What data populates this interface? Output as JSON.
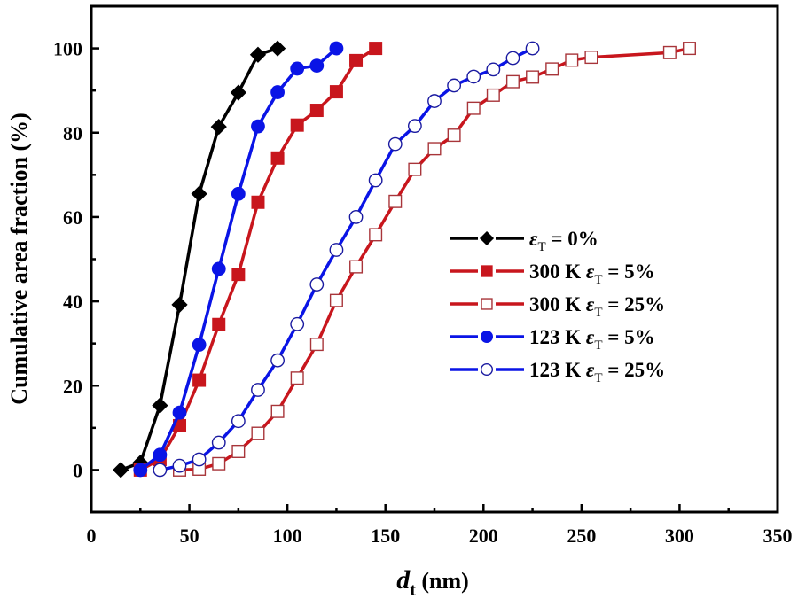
{
  "chart_data": {
    "type": "line",
    "title": "",
    "xlabel": "d",
    "xlabel_sub": "t",
    "xlabel_unit": " (nm)",
    "ylabel": "Cumulative area fraction (%)",
    "xlim": [
      0,
      350
    ],
    "ylim": [
      -10,
      110
    ],
    "xticks": [
      0,
      50,
      100,
      150,
      200,
      250,
      300,
      350
    ],
    "yticks": [
      0,
      20,
      40,
      60,
      80,
      100
    ],
    "grid": false,
    "legend_position": "center-right",
    "series": [
      {
        "name": "ε_T = 0%",
        "legend_prefix": "",
        "legend_symbol": "ε",
        "legend_sub": "T",
        "legend_suffix": " = 0%",
        "color": "#000000",
        "marker": "diamond",
        "filled": true,
        "x": [
          15,
          25,
          35,
          45,
          55,
          65,
          75,
          85,
          95
        ],
        "y": [
          0,
          1.7,
          15.3,
          39.2,
          65.5,
          81.4,
          89.5,
          98.5,
          100
        ]
      },
      {
        "name": "300 K ε_T = 5%",
        "legend_prefix": "300 K ",
        "legend_symbol": "ε",
        "legend_sub": "T",
        "legend_suffix": " = 5%",
        "color": "#c8161d",
        "marker": "square",
        "filled": true,
        "x": [
          25,
          35,
          45,
          55,
          65,
          75,
          85,
          95,
          105,
          115,
          125,
          135,
          145
        ],
        "y": [
          0,
          2.5,
          10.5,
          21.3,
          34.5,
          46.4,
          63.5,
          74,
          81.8,
          85.3,
          89.7,
          97.1,
          100
        ]
      },
      {
        "name": "300 K ε_T = 25%",
        "legend_prefix": "300 K ",
        "legend_symbol": "ε",
        "legend_sub": "T",
        "legend_suffix": " = 25%",
        "color": "#c8161d",
        "marker": "square",
        "filled": false,
        "x": [
          45,
          55,
          65,
          75,
          85,
          95,
          105,
          115,
          125,
          135,
          145,
          155,
          165,
          175,
          185,
          195,
          205,
          215,
          225,
          235,
          245,
          255,
          295,
          305
        ],
        "y": [
          0,
          0.2,
          1.5,
          4.4,
          8.7,
          13.9,
          21.8,
          29.8,
          40.2,
          48.2,
          55.8,
          63.7,
          71.3,
          76.2,
          79.4,
          85.8,
          88.9,
          92.1,
          93.2,
          95.1,
          97.2,
          97.9,
          99,
          100
        ]
      },
      {
        "name": "123 K ε_T = 5%",
        "legend_prefix": "123 K ",
        "legend_symbol": "ε",
        "legend_sub": "T",
        "legend_suffix": " = 5%",
        "color": "#0a14e6",
        "marker": "circle",
        "filled": true,
        "x": [
          25,
          35,
          45,
          55,
          65,
          75,
          85,
          95,
          105,
          115,
          125
        ],
        "y": [
          0,
          3.6,
          13.6,
          29.7,
          47.7,
          65.5,
          81.5,
          89.6,
          95.2,
          95.9,
          100
        ]
      },
      {
        "name": "123 K ε_T = 25%",
        "legend_prefix": "123 K ",
        "legend_symbol": "ε",
        "legend_sub": "T",
        "legend_suffix": " = 25%",
        "color": "#0a14e6",
        "marker": "circle",
        "filled": false,
        "x": [
          35,
          45,
          55,
          65,
          75,
          85,
          95,
          105,
          115,
          125,
          135,
          145,
          155,
          165,
          175,
          185,
          195,
          205,
          215,
          225
        ],
        "y": [
          0,
          1,
          2.5,
          6.5,
          11.6,
          19,
          26,
          34.6,
          44,
          52.2,
          60,
          68.7,
          77.3,
          81.6,
          87.5,
          91.2,
          93.3,
          95,
          97.7,
          100
        ]
      }
    ]
  }
}
